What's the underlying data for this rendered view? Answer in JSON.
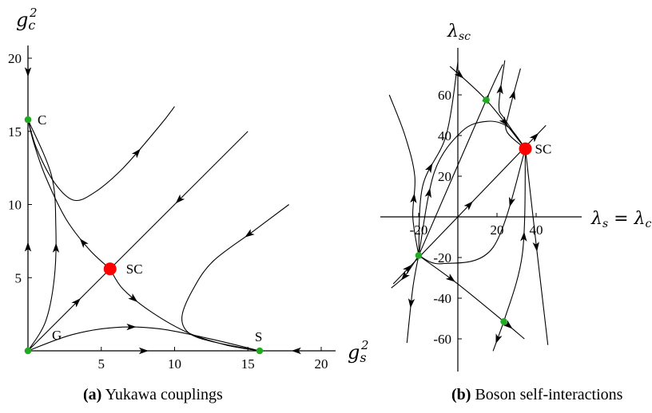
{
  "chart_data": [
    {
      "type": "line",
      "subplot_label": "(a)",
      "caption": "Yukawa couplings",
      "xlabel": "g_s^2",
      "ylabel": "g_c^2",
      "xlim": [
        0,
        21
      ],
      "ylim": [
        0,
        21
      ],
      "xticks": [
        5,
        10,
        15,
        20
      ],
      "yticks": [
        5,
        10,
        15,
        20
      ],
      "fixed_points": [
        {
          "label": "C",
          "x": 0,
          "y": 15.8,
          "color": "#22aa22"
        },
        {
          "label": "S",
          "x": 15.8,
          "y": 0,
          "color": "#22aa22"
        },
        {
          "label": "G",
          "x": 0,
          "y": 0,
          "color": "#22aa22"
        },
        {
          "label": "SC",
          "x": 5.6,
          "y": 5.6,
          "color": "#ff0000"
        }
      ],
      "series": [
        {
          "points": [
            [
              0,
              20.8
            ],
            [
              0,
              15.8
            ]
          ],
          "arrows": [
            0.35
          ]
        },
        {
          "points": [
            [
              0,
              0
            ],
            [
              0,
              15.8
            ]
          ],
          "arrows": [
            0.45
          ]
        },
        {
          "points": [
            [
              0,
              0
            ],
            [
              15.8,
              0
            ]
          ],
          "arrows": [
            0.5
          ]
        },
        {
          "points": [
            [
              20.8,
              0
            ],
            [
              15.8,
              0
            ]
          ],
          "arrows": [
            0.5
          ]
        },
        {
          "points": [
            [
              0,
              0
            ],
            [
              5.6,
              5.6
            ]
          ],
          "arrows": [
            0.6
          ]
        },
        {
          "points": [
            [
              15,
              15
            ],
            [
              5.6,
              5.6
            ]
          ],
          "arrows": [
            0.5
          ]
        },
        {
          "points": [
            [
              5.6,
              5.6
            ],
            [
              6.5,
              4.2
            ],
            [
              8.5,
              2.6
            ],
            [
              11,
              1.2
            ],
            [
              13.5,
              0.4
            ],
            [
              15.8,
              0
            ]
          ],
          "arrows": [
            0.22
          ]
        },
        {
          "points": [
            [
              5.6,
              5.6
            ],
            [
              4.2,
              6.9
            ],
            [
              2.6,
              9.0
            ],
            [
              1.2,
              11.9
            ],
            [
              0.4,
              14.2
            ],
            [
              0,
              15.8
            ]
          ],
          "arrows": [
            0.22
          ]
        },
        {
          "points": [
            [
              0,
              0
            ],
            [
              1.2,
              2.0
            ],
            [
              1.8,
              5.0
            ],
            [
              1.9,
              8.5
            ],
            [
              1.6,
              12
            ],
            [
              0,
              15.8
            ]
          ],
          "arrows": [
            0.45
          ]
        },
        {
          "points": [
            [
              0,
              0
            ],
            [
              3,
              1.1
            ],
            [
              6,
              1.6
            ],
            [
              9,
              1.5
            ],
            [
              12.5,
              0.8
            ],
            [
              15.8,
              0
            ]
          ],
          "arrows": [
            0.45
          ]
        },
        {
          "points": [
            [
              0,
              15.8
            ],
            [
              0.6,
              13.8
            ],
            [
              1.8,
              11.5
            ],
            [
              3.1,
              10.3
            ],
            [
              4.5,
              10.8
            ],
            [
              6.5,
              12.5
            ],
            [
              9,
              15.4
            ],
            [
              10,
              16.7
            ]
          ],
          "arrows": [
            0.75
          ]
        },
        {
          "points": [
            [
              17.8,
              10
            ],
            [
              15.4,
              8.2
            ],
            [
              12.6,
              6.1
            ],
            [
              11.2,
              4.1
            ],
            [
              10.5,
              2.3
            ],
            [
              11,
              1.2
            ],
            [
              12.7,
              0.6
            ],
            [
              15.8,
              0
            ]
          ],
          "arrows": [
            0.2
          ]
        }
      ]
    },
    {
      "type": "line",
      "subplot_label": "(b)",
      "caption": "Boson self-interactions",
      "xlabel": "λ_s = λ_c",
      "ylabel": "λ_sc",
      "xlim": [
        -33,
        50
      ],
      "ylim": [
        -66,
        78
      ],
      "xticks": [
        -20,
        20,
        40
      ],
      "yticks": [
        -60,
        -40,
        -20,
        20,
        40,
        60
      ],
      "fixed_points": [
        {
          "label": "",
          "x": 14.5,
          "y": 57.5,
          "color": "#22aa22"
        },
        {
          "label": "",
          "x": -20,
          "y": -19,
          "color": "#22aa22"
        },
        {
          "label": "",
          "x": 23.5,
          "y": -51.5,
          "color": "#22aa22"
        },
        {
          "label": "SC",
          "x": 34.5,
          "y": 33.5,
          "color": "#ff0000"
        }
      ],
      "series": [
        {
          "points": [
            [
              -20,
              -19
            ],
            [
              14.5,
              57.5
            ],
            [
              23,
              75
            ]
          ],
          "arrows": [
            0.82
          ]
        },
        {
          "points": [
            [
              -33,
              -33
            ],
            [
              45,
              45
            ]
          ],
          "arrows": [
            0.1,
            0.5,
            0.93
          ]
        },
        {
          "points": [
            [
              -4,
              74
            ],
            [
              14.5,
              57.5
            ],
            [
              34.5,
              33.5
            ]
          ],
          "arrows": [
            0.12,
            0.7
          ]
        },
        {
          "points": [
            [
              -20,
              -19
            ],
            [
              -27,
              -29
            ],
            [
              -34,
              -35
            ]
          ],
          "arrows": [
            0.6
          ]
        },
        {
          "points": [
            [
              -20,
              -19
            ],
            [
              0,
              -33
            ],
            [
              23.5,
              -51.5
            ],
            [
              34,
              -60
            ]
          ],
          "arrows": [
            0.3,
            0.85
          ]
        },
        {
          "points": [
            [
              -20,
              -19
            ],
            [
              -23,
              -35
            ],
            [
              -26,
              -62
            ]
          ],
          "arrows": [
            0.55
          ]
        },
        {
          "points": [
            [
              23.5,
              -51.5
            ],
            [
              33,
              -18
            ],
            [
              34.5,
              33.5
            ]
          ],
          "arrows": [
            0.5
          ]
        },
        {
          "points": [
            [
              23.5,
              -51.5
            ],
            [
              18,
              -66
            ]
          ],
          "arrows": [
            0.6
          ]
        },
        {
          "points": [
            [
              -20,
              -19
            ],
            [
              -12,
              22
            ],
            [
              2,
              42
            ],
            [
              15,
              47
            ],
            [
              26,
              44
            ],
            [
              34.5,
              33.5
            ]
          ],
          "arrows": [
            0.3
          ]
        },
        {
          "points": [
            [
              34.5,
              33.5
            ],
            [
              18,
              -15
            ],
            [
              -8,
              -23
            ],
            [
              -20,
              -19
            ]
          ],
          "arrows": [
            0.3
          ]
        },
        {
          "points": [
            [
              -20,
              -19
            ],
            [
              -23,
              0
            ],
            [
              -22,
              20
            ],
            [
              -27,
              40
            ],
            [
              -35,
              60
            ]
          ],
          "arrows": [
            0.35
          ]
        },
        {
          "points": [
            [
              -20,
              -19
            ],
            [
              -18,
              15
            ],
            [
              -6,
              40
            ],
            [
              0,
              76
            ]
          ],
          "arrows": [
            0.45
          ]
        },
        {
          "points": [
            [
              34.5,
              33.5
            ],
            [
              39,
              -5
            ],
            [
              42,
              -30
            ],
            [
              46,
              -63
            ]
          ],
          "arrows": [
            0.5
          ]
        },
        {
          "points": [
            [
              34.5,
              33.5
            ],
            [
              24,
              48
            ],
            [
              21,
              55
            ],
            [
              24,
              77
            ]
          ],
          "arrows": [
            0.7
          ]
        },
        {
          "points": [
            [
              34.5,
              33.5
            ],
            [
              25,
              42
            ],
            [
              26,
              51
            ],
            [
              32,
              73
            ]
          ],
          "arrows": [
            0.7
          ]
        }
      ]
    }
  ]
}
